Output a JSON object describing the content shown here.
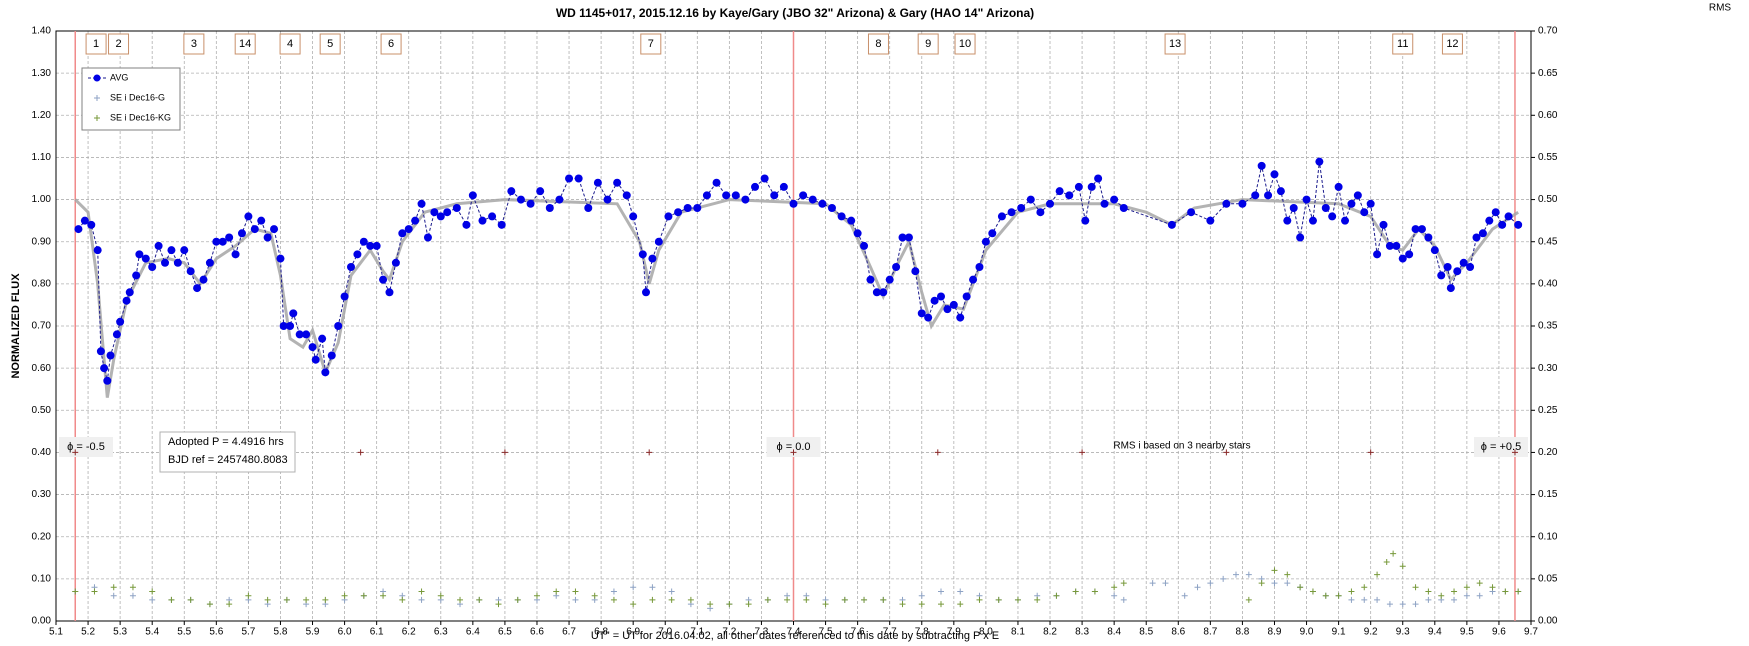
{
  "chart_data": {
    "type": "scatter",
    "title": "WD 1145+017, 2015.12.16  by Kaye/Gary (JBO 32\" Arizona) & Gary (HAO 14\" Arizona)",
    "x_label": "UT'' = UT for 2016.04.02, all other dates referenced to this date by subtracting P x E",
    "y_label": "NORMALIZED  FLUX",
    "y2_label": "RMS",
    "xlim": [
      5.1,
      9.7
    ],
    "xticks": [
      5.1,
      5.2,
      5.3,
      5.4,
      5.5,
      5.6,
      5.7,
      5.8,
      5.9,
      {
        "value": 6,
        "label": "6.0"
      },
      6.1,
      6.2,
      6.3,
      6.4,
      6.5,
      6.6,
      6.7,
      6.8,
      6.9,
      {
        "value": 7,
        "label": "7.0"
      },
      7.1,
      7.2,
      7.3,
      7.4,
      7.5,
      7.6,
      7.7,
      7.8,
      7.9,
      {
        "value": 8,
        "label": "8.0"
      },
      8.1,
      8.2,
      8.3,
      8.4,
      8.5,
      8.6,
      8.7,
      8.8,
      8.9,
      {
        "value": 9,
        "label": "9.0"
      },
      9.1,
      9.2,
      9.3,
      9.4,
      9.5,
      9.6,
      9.7
    ],
    "ylim": [
      0,
      1.4
    ],
    "yticks": [
      {
        "value": 0,
        "label": "0.00"
      },
      {
        "value": 0.1,
        "label": "0.10"
      },
      {
        "value": 0.2,
        "label": "0.20"
      },
      {
        "value": 0.3,
        "label": "0.30"
      },
      {
        "value": 0.4,
        "label": "0.40"
      },
      {
        "value": 0.5,
        "label": "0.50"
      },
      {
        "value": 0.6,
        "label": "0.60"
      },
      {
        "value": 0.7,
        "label": "0.70"
      },
      {
        "value": 0.8,
        "label": "0.80"
      },
      {
        "value": 0.9,
        "label": "0.90"
      },
      {
        "value": 1,
        "label": "1.00"
      },
      {
        "value": 1.1,
        "label": "1.10"
      },
      {
        "value": 1.2,
        "label": "1.20"
      },
      {
        "value": 1.3,
        "label": "1.30"
      },
      {
        "value": 1.4,
        "label": "1.40"
      }
    ],
    "y2lim": [
      0,
      0.7
    ],
    "y2ticks": [
      {
        "value": 0,
        "label": "0.00"
      },
      {
        "value": 0.05,
        "label": "0.05"
      },
      {
        "value": 0.1,
        "label": "0.10"
      },
      {
        "value": 0.15,
        "label": "0.15"
      },
      {
        "value": 0.2,
        "label": "0.20"
      },
      {
        "value": 0.25,
        "label": "0.25"
      },
      {
        "value": 0.3,
        "label": "0.30"
      },
      {
        "value": 0.35,
        "label": "0.35"
      },
      {
        "value": 0.4,
        "label": "0.40"
      },
      {
        "value": 0.45,
        "label": "0.45"
      },
      {
        "value": 0.5,
        "label": "0.50"
      },
      {
        "value": 0.55,
        "label": "0.55"
      },
      {
        "value": 0.6,
        "label": "0.60"
      },
      {
        "value": 0.65,
        "label": "0.65"
      },
      {
        "value": 0.7,
        "label": "0.70"
      }
    ],
    "grid": true,
    "legend": "top-left",
    "series": [
      {
        "name": "AVG",
        "color": "#0000e6",
        "marker": "circle",
        "x": [
          5.17,
          5.19,
          5.21,
          5.23,
          5.24,
          5.25,
          5.26,
          5.27,
          5.29,
          5.3,
          5.32,
          5.33,
          5.35,
          5.36,
          5.38,
          5.4,
          5.42,
          5.44,
          5.46,
          5.48,
          5.5,
          5.52,
          5.54,
          5.56,
          5.58,
          5.6,
          5.62,
          5.64,
          5.66,
          5.68,
          5.7,
          5.72,
          5.74,
          5.76,
          5.78,
          5.8,
          5.81,
          5.83,
          5.84,
          5.86,
          5.88,
          5.9,
          5.91,
          5.93,
          5.94,
          5.96,
          5.98,
          6.0,
          6.02,
          6.04,
          6.06,
          6.08,
          6.1,
          6.12,
          6.14,
          6.16,
          6.18,
          6.2,
          6.22,
          6.24,
          6.26,
          6.28,
          6.3,
          6.32,
          6.35,
          6.38,
          6.4,
          6.43,
          6.46,
          6.49,
          6.52,
          6.55,
          6.58,
          6.61,
          6.64,
          6.67,
          6.7,
          6.73,
          6.76,
          6.79,
          6.82,
          6.85,
          6.88,
          6.9,
          6.93,
          6.94,
          6.96,
          6.98,
          7.01,
          7.04,
          7.07,
          7.1,
          7.13,
          7.16,
          7.19,
          7.22,
          7.25,
          7.28,
          7.31,
          7.34,
          7.37,
          7.4,
          7.43,
          7.46,
          7.49,
          7.52,
          7.55,
          7.58,
          7.6,
          7.62,
          7.64,
          7.66,
          7.68,
          7.7,
          7.72,
          7.74,
          7.76,
          7.78,
          7.8,
          7.82,
          7.84,
          7.86,
          7.88,
          7.9,
          7.92,
          7.94,
          7.96,
          7.98,
          8.0,
          8.02,
          8.05,
          8.08,
          8.11,
          8.14,
          8.17,
          8.2,
          8.23,
          8.26,
          8.29,
          8.31,
          8.33,
          8.35,
          8.37,
          8.4,
          8.43,
          8.58,
          8.64,
          8.7,
          8.75,
          8.8,
          8.84,
          8.86,
          8.88,
          8.9,
          8.92,
          8.94,
          8.96,
          8.98,
          9.0,
          9.02,
          9.04,
          9.06,
          9.08,
          9.1,
          9.12,
          9.14,
          9.16,
          9.18,
          9.2,
          9.22,
          9.24,
          9.26,
          9.28,
          9.3,
          9.32,
          9.34,
          9.36,
          9.38,
          9.4,
          9.42,
          9.44,
          9.45,
          9.47,
          9.49,
          9.51,
          9.53,
          9.55,
          9.57,
          9.59,
          9.61,
          9.63,
          9.66
        ],
        "values": [
          0.93,
          0.95,
          0.94,
          0.88,
          0.64,
          0.6,
          0.57,
          0.63,
          0.68,
          0.71,
          0.76,
          0.78,
          0.82,
          0.87,
          0.86,
          0.84,
          0.89,
          0.85,
          0.88,
          0.85,
          0.88,
          0.83,
          0.79,
          0.81,
          0.85,
          0.9,
          0.9,
          0.91,
          0.87,
          0.92,
          0.96,
          0.93,
          0.95,
          0.91,
          0.93,
          0.86,
          0.7,
          0.7,
          0.73,
          0.68,
          0.68,
          0.65,
          0.62,
          0.67,
          0.59,
          0.63,
          0.7,
          0.77,
          0.84,
          0.87,
          0.9,
          0.89,
          0.89,
          0.81,
          0.78,
          0.85,
          0.92,
          0.93,
          0.95,
          0.99,
          0.91,
          0.97,
          0.96,
          0.97,
          0.98,
          0.94,
          1.01,
          0.95,
          0.96,
          0.94,
          1.02,
          1.0,
          0.99,
          1.02,
          0.98,
          1.0,
          1.05,
          1.05,
          0.98,
          1.04,
          1.0,
          1.04,
          1.01,
          0.96,
          0.87,
          0.78,
          0.86,
          0.9,
          0.96,
          0.97,
          0.98,
          0.98,
          1.01,
          1.04,
          1.01,
          1.01,
          1.0,
          1.03,
          1.05,
          1.01,
          1.03,
          0.99,
          1.01,
          1.0,
          0.99,
          0.98,
          0.96,
          0.95,
          0.92,
          0.89,
          0.81,
          0.78,
          0.78,
          0.81,
          0.84,
          0.91,
          0.91,
          0.83,
          0.73,
          0.72,
          0.76,
          0.77,
          0.74,
          0.75,
          0.72,
          0.77,
          0.81,
          0.84,
          0.9,
          0.92,
          0.96,
          0.97,
          0.98,
          1.0,
          0.97,
          0.99,
          1.02,
          1.01,
          1.03,
          0.95,
          1.03,
          1.05,
          0.99,
          1.0,
          0.98,
          0.94,
          0.97,
          0.95,
          0.99,
          0.99,
          1.01,
          1.08,
          1.01,
          1.06,
          1.02,
          0.95,
          0.98,
          0.91,
          1.0,
          0.95,
          1.09,
          0.98,
          0.96,
          1.03,
          0.95,
          0.99,
          1.01,
          0.97,
          0.99,
          0.87,
          0.94,
          0.89,
          0.89,
          0.86,
          0.87,
          0.93,
          0.93,
          0.91,
          0.88,
          0.82,
          0.84,
          0.79,
          0.83,
          0.85,
          0.84,
          0.91,
          0.92,
          0.95,
          0.97,
          0.94,
          0.96,
          0.94
        ]
      },
      {
        "name": "SE i Dec16-G",
        "color": "#8da2c4",
        "marker": "plus",
        "axis": "y2",
        "x": [
          5.16,
          5.22,
          5.28,
          5.34,
          5.4,
          5.46,
          5.52,
          5.58,
          5.64,
          5.7,
          5.76,
          5.82,
          5.88,
          5.94,
          6.0,
          6.06,
          6.12,
          6.18,
          6.24,
          6.3,
          6.36,
          6.42,
          6.48,
          6.54,
          6.6,
          6.66,
          6.72,
          6.78,
          6.84,
          6.9,
          6.96,
          7.02,
          7.08,
          7.14,
          7.2,
          7.26,
          7.32,
          7.38,
          7.44,
          7.5,
          7.56,
          7.62,
          7.68,
          7.74,
          7.8,
          7.86,
          7.92,
          7.98,
          8.04,
          8.1,
          8.16,
          8.22,
          8.28,
          8.34,
          8.4,
          8.43,
          8.52,
          8.56,
          8.62,
          8.66,
          8.7,
          8.74,
          8.78,
          8.82,
          8.86,
          8.9,
          8.94,
          8.98,
          9.02,
          9.06,
          9.1,
          9.14,
          9.18,
          9.22,
          9.26,
          9.3,
          9.34,
          9.38,
          9.42,
          9.46,
          9.5,
          9.54,
          9.58,
          9.62,
          9.66
        ],
        "values": [
          0.035,
          0.04,
          0.03,
          0.03,
          0.025,
          0.025,
          0.025,
          0.02,
          0.025,
          0.025,
          0.02,
          0.025,
          0.02,
          0.02,
          0.025,
          0.03,
          0.035,
          0.03,
          0.025,
          0.025,
          0.02,
          0.025,
          0.025,
          0.025,
          0.025,
          0.03,
          0.025,
          0.025,
          0.035,
          0.04,
          0.04,
          0.035,
          0.02,
          0.015,
          0.02,
          0.025,
          0.025,
          0.03,
          0.03,
          0.025,
          0.025,
          0.025,
          0.025,
          0.025,
          0.03,
          0.035,
          0.035,
          0.03,
          0.025,
          0.025,
          0.03,
          0.03,
          0.035,
          0.035,
          0.03,
          0.025,
          0.045,
          0.045,
          0.03,
          0.04,
          0.045,
          0.05,
          0.055,
          0.055,
          0.05,
          0.045,
          0.045,
          0.04,
          0.035,
          0.03,
          0.03,
          0.025,
          0.025,
          0.025,
          0.02,
          0.02,
          0.02,
          0.025,
          0.025,
          0.025,
          0.03,
          0.03,
          0.035,
          0.035,
          0.035
        ]
      },
      {
        "name": "SE i Dec16-KG",
        "color": "#77993a",
        "marker": "plus",
        "axis": "y2",
        "x": [
          5.16,
          5.22,
          5.28,
          5.34,
          5.4,
          5.46,
          5.52,
          5.58,
          5.64,
          5.7,
          5.76,
          5.82,
          5.88,
          5.94,
          6.0,
          6.06,
          6.12,
          6.18,
          6.24,
          6.3,
          6.36,
          6.42,
          6.48,
          6.54,
          6.6,
          6.66,
          6.72,
          6.78,
          6.84,
          6.9,
          6.96,
          7.02,
          7.08,
          7.14,
          7.2,
          7.26,
          7.32,
          7.38,
          7.44,
          7.5,
          7.56,
          7.62,
          7.68,
          7.74,
          7.8,
          7.86,
          7.92,
          7.98,
          8.04,
          8.1,
          8.16,
          8.22,
          8.28,
          8.34,
          8.4,
          8.43,
          8.82,
          8.86,
          8.9,
          8.94,
          8.98,
          9.02,
          9.06,
          9.1,
          9.14,
          9.18,
          9.22,
          9.25,
          9.27,
          9.3,
          9.34,
          9.38,
          9.42,
          9.46,
          9.5,
          9.54,
          9.58,
          9.62,
          9.66
        ],
        "values": [
          0.035,
          0.035,
          0.04,
          0.04,
          0.035,
          0.025,
          0.025,
          0.02,
          0.02,
          0.03,
          0.025,
          0.025,
          0.025,
          0.025,
          0.03,
          0.03,
          0.03,
          0.025,
          0.035,
          0.03,
          0.025,
          0.025,
          0.02,
          0.025,
          0.03,
          0.035,
          0.035,
          0.03,
          0.025,
          0.02,
          0.025,
          0.025,
          0.025,
          0.02,
          0.02,
          0.02,
          0.025,
          0.025,
          0.025,
          0.02,
          0.025,
          0.025,
          0.025,
          0.02,
          0.02,
          0.02,
          0.02,
          0.025,
          0.025,
          0.025,
          0.025,
          0.03,
          0.035,
          0.035,
          0.04,
          0.045,
          0.025,
          0.045,
          0.06,
          0.055,
          0.04,
          0.035,
          0.03,
          0.03,
          0.035,
          0.04,
          0.055,
          0.07,
          0.08,
          0.065,
          0.04,
          0.035,
          0.03,
          0.035,
          0.04,
          0.045,
          0.04,
          0.035,
          0.035
        ]
      }
    ],
    "model_curve": {
      "color": "#a6a6a6",
      "x": [
        5.16,
        5.2,
        5.23,
        5.26,
        5.28,
        5.32,
        5.38,
        5.45,
        5.5,
        5.55,
        5.6,
        5.66,
        5.72,
        5.77,
        5.8,
        5.83,
        5.87,
        5.9,
        5.94,
        5.98,
        6.02,
        6.08,
        6.12,
        6.14,
        6.18,
        6.25,
        6.35,
        6.5,
        6.85,
        6.92,
        6.95,
        6.98,
        7.05,
        7.2,
        7.5,
        7.58,
        7.64,
        7.68,
        7.72,
        7.76,
        7.8,
        7.83,
        7.87,
        7.93,
        8.0,
        8.1,
        8.2,
        8.4,
        8.5,
        8.58,
        8.65,
        8.8,
        9.1,
        9.2,
        9.26,
        9.3,
        9.35,
        9.4,
        9.45,
        9.5,
        9.58,
        9.66
      ],
      "values": [
        1.0,
        0.97,
        0.8,
        0.53,
        0.62,
        0.76,
        0.85,
        0.86,
        0.85,
        0.8,
        0.86,
        0.89,
        0.93,
        0.92,
        0.82,
        0.67,
        0.65,
        0.69,
        0.59,
        0.66,
        0.82,
        0.88,
        0.83,
        0.81,
        0.9,
        0.97,
        0.99,
        1.0,
        0.99,
        0.9,
        0.8,
        0.88,
        0.97,
        1.0,
        0.99,
        0.94,
        0.84,
        0.77,
        0.84,
        0.9,
        0.78,
        0.7,
        0.75,
        0.74,
        0.88,
        0.97,
        0.99,
        0.99,
        0.97,
        0.94,
        0.98,
        1.0,
        0.99,
        0.96,
        0.89,
        0.88,
        0.93,
        0.89,
        0.81,
        0.85,
        0.93,
        0.97
      ]
    },
    "ephemeris_marks": {
      "color": "#8b2a2a",
      "x": [
        5.16,
        5.6,
        6.05,
        6.5,
        6.95,
        7.4,
        7.85,
        8.3,
        8.75,
        9.2,
        9.65
      ],
      "values": [
        0.4,
        0.4,
        0.4,
        0.4,
        0.4,
        0.4,
        0.4,
        0.4,
        0.4,
        0.4,
        0.4
      ]
    },
    "phase_lines": [
      {
        "x": 5.16,
        "label": "ϕ = -0.5"
      },
      {
        "x": 7.4,
        "label": "ϕ = 0.0"
      },
      {
        "x": 9.65,
        "label": "ϕ = +0.5"
      }
    ],
    "eclipse_labels": [
      {
        "label": "1",
        "x": 5.225
      },
      {
        "label": "2",
        "x": 5.295
      },
      {
        "label": "3",
        "x": 5.53
      },
      {
        "label": "14",
        "x": 5.69
      },
      {
        "label": "4",
        "x": 5.83
      },
      {
        "label": "5",
        "x": 5.955
      },
      {
        "label": "6",
        "x": 6.145
      },
      {
        "label": "7",
        "x": 6.955
      },
      {
        "label": "8",
        "x": 7.665
      },
      {
        "label": "9",
        "x": 7.82
      },
      {
        "label": "10",
        "x": 7.935
      },
      {
        "label": "13",
        "x": 8.59
      },
      {
        "label": "11",
        "x": 9.3
      },
      {
        "label": "12",
        "x": 9.455
      }
    ],
    "period_note": [
      "Adopted P = 4.4916 hrs",
      "BJD ref = 2457480.8083"
    ],
    "rms_note": "RMS i based on 3 nearby stars"
  }
}
